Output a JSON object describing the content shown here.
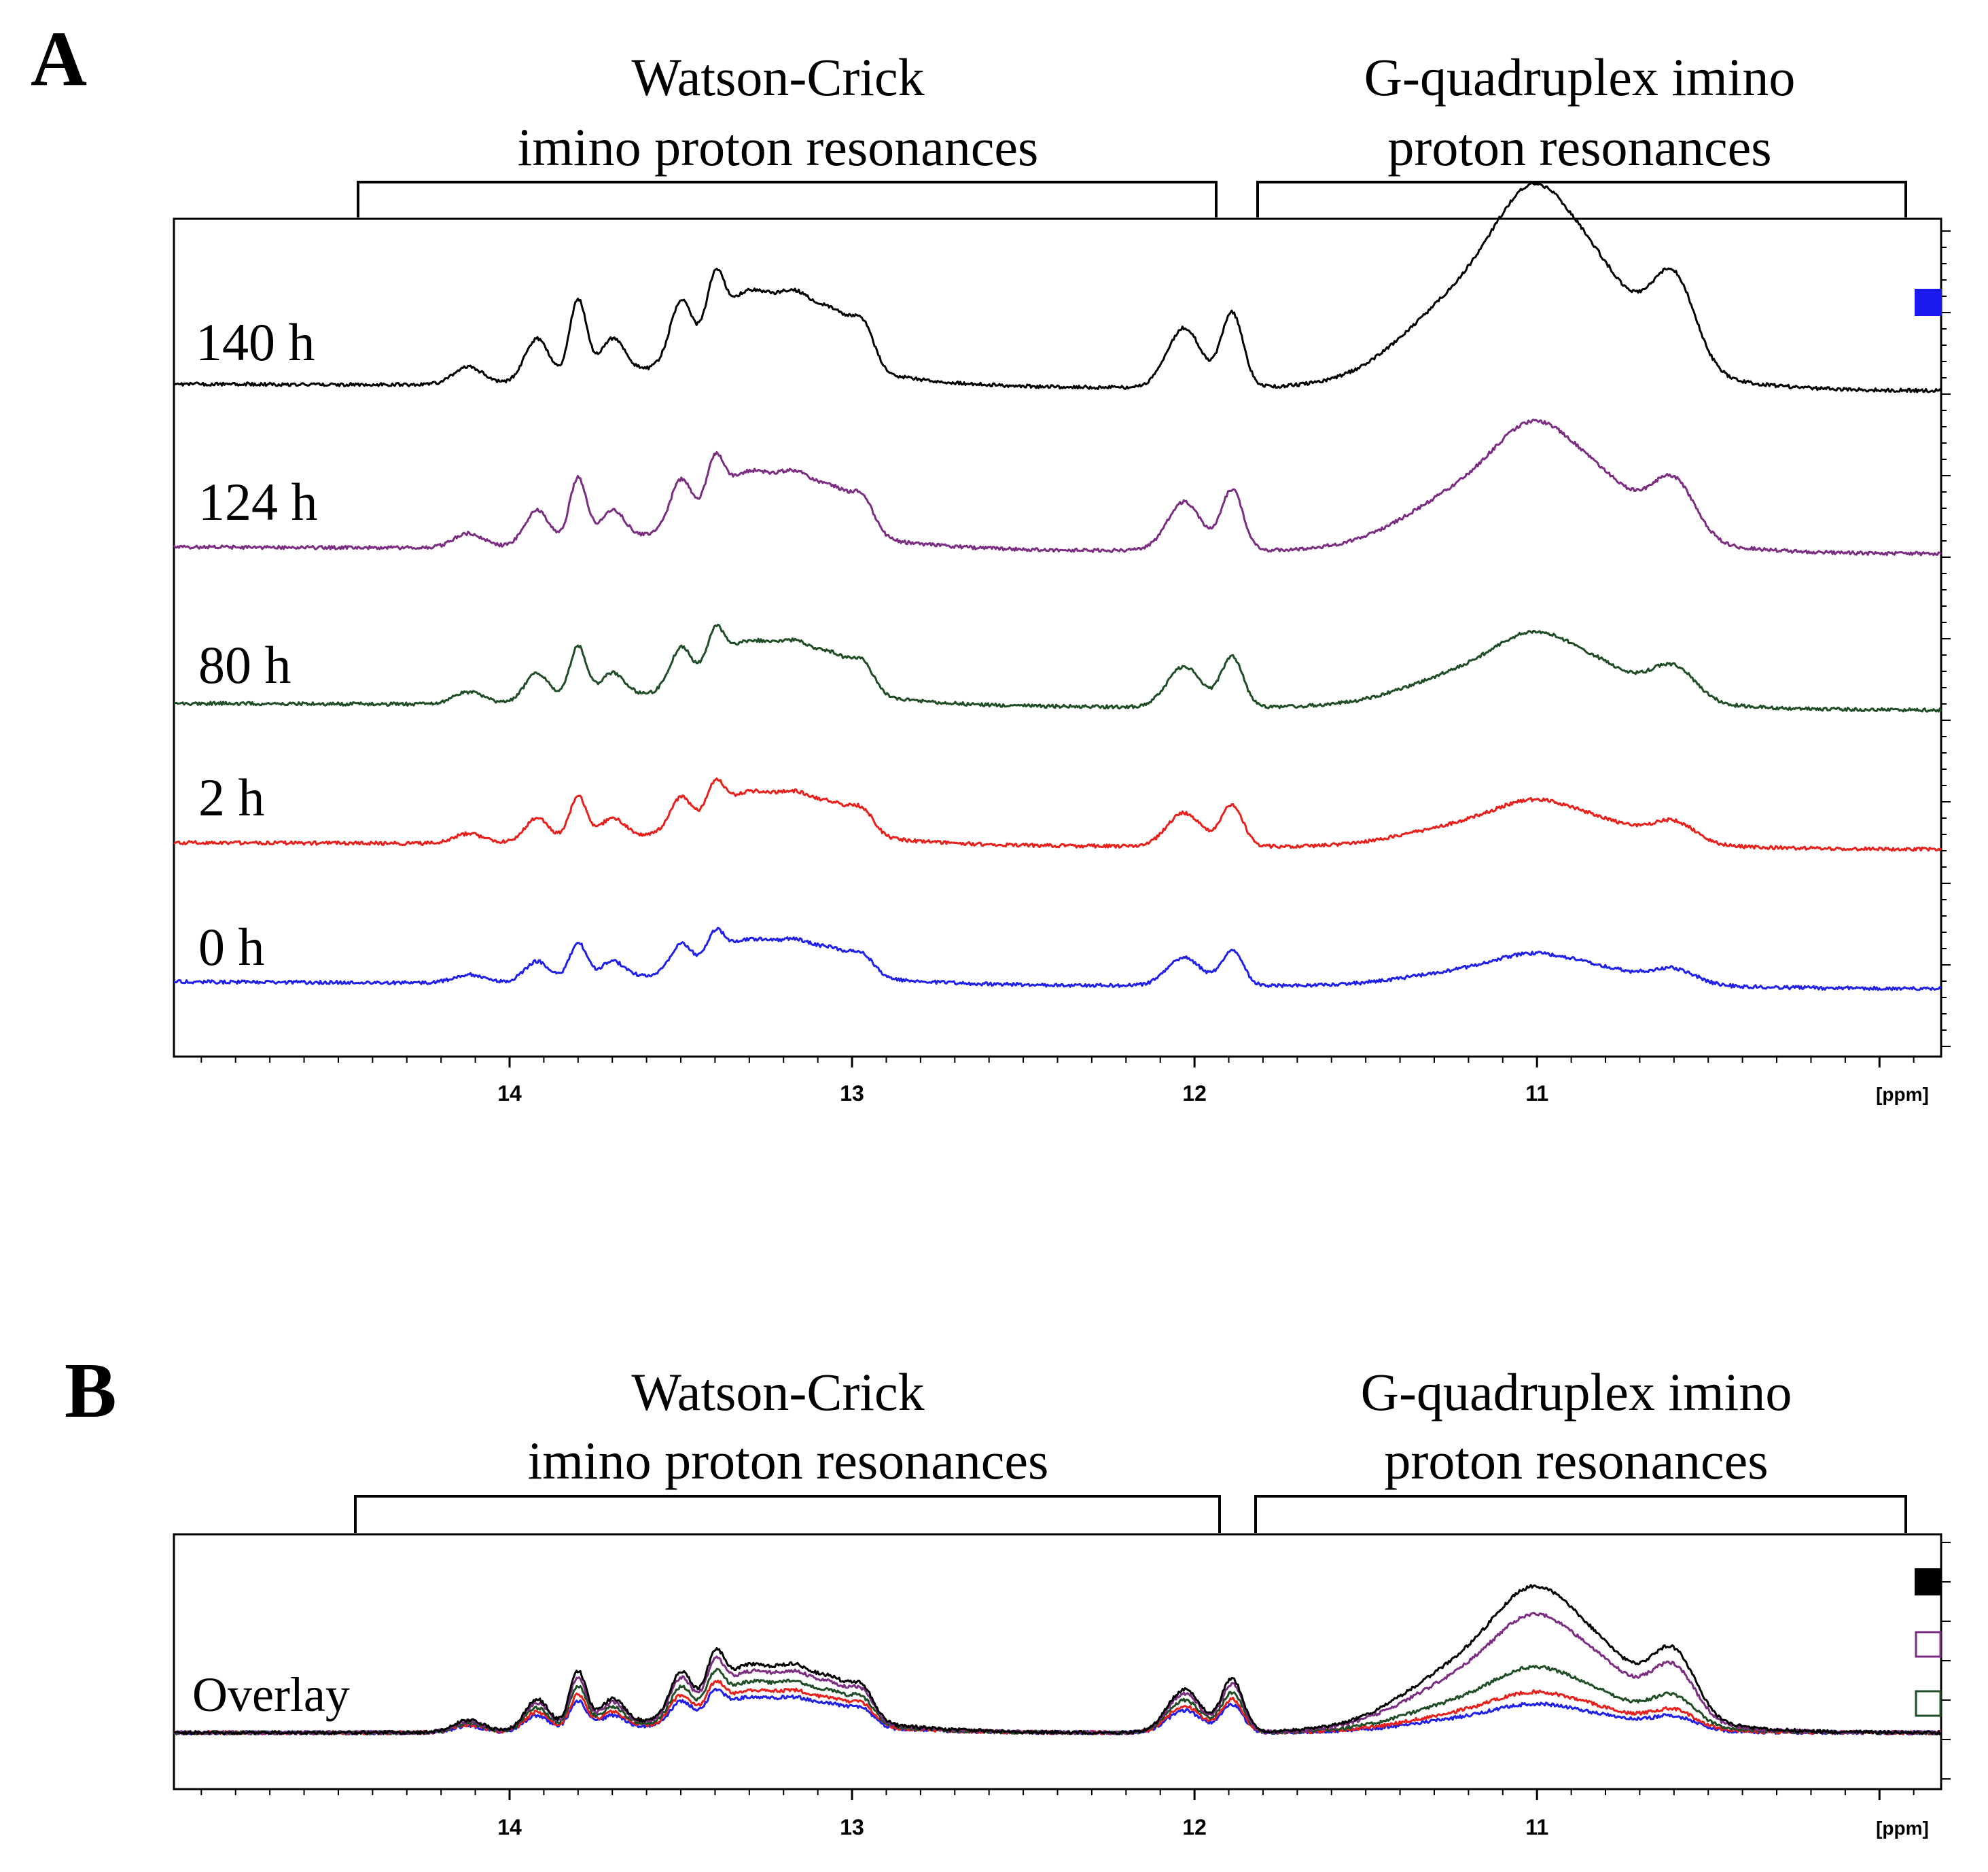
{
  "panels": [
    {
      "letter": "A",
      "brackets": [
        {
          "lines": [
            "Watson-Crick",
            "imino proton resonances"
          ],
          "from_ppm": 14.45,
          "to_ppm": 11.92
        },
        {
          "lines": [
            "G-quadruplex imino",
            "proton resonances"
          ],
          "from_ppm": 11.82,
          "to_ppm": 9.93
        }
      ]
    },
    {
      "letter": "B",
      "brackets": [
        {
          "lines": [
            "Watson-Crick",
            "imino proton resonances"
          ],
          "from_ppm": 14.45,
          "to_ppm": 11.92
        },
        {
          "lines": [
            "G-quadruplex imino",
            "proton resonances"
          ],
          "from_ppm": 11.82,
          "to_ppm": 9.93
        }
      ],
      "overlay_label": "Overlay"
    }
  ],
  "chart_data": [
    {
      "type": "line",
      "title": "A",
      "xlabel": "[ppm]",
      "xlim": [
        14.98,
        9.82
      ],
      "xticks": [
        "14",
        "13",
        "12",
        "11"
      ],
      "tick_values": [
        14,
        13,
        12,
        11
      ],
      "x_direction": "reversed",
      "series": [
        {
          "name": "140 h",
          "color": "#000000",
          "intensity_scale": 1.0
        },
        {
          "name": "124 h",
          "color": "#7b2d82",
          "intensity_scale": 0.82
        },
        {
          "name": "80 h",
          "color": "#1f4d26",
          "intensity_scale": 0.68
        },
        {
          "name": "2 h",
          "color": "#e8201c",
          "intensity_scale": 0.56
        },
        {
          "name": "0 h",
          "color": "#2020e8",
          "intensity_scale": 0.47
        }
      ],
      "peaks_ppm": [
        {
          "ppm": 14.12,
          "height": 0.12
        },
        {
          "ppm": 13.92,
          "height": 0.3
        },
        {
          "ppm": 13.8,
          "height": 0.55
        },
        {
          "ppm": 13.7,
          "height": 0.25
        },
        {
          "ppm": 13.5,
          "height": 0.42
        },
        {
          "ppm": 13.4,
          "height": 0.4
        },
        {
          "ppm": 13.3,
          "height": 0.48
        },
        {
          "ppm": 13.15,
          "height": 0.38
        },
        {
          "ppm": 13.05,
          "height": 0.3
        },
        {
          "ppm": 12.97,
          "height": 0.32
        },
        {
          "ppm": 12.03,
          "height": 0.42
        },
        {
          "ppm": 11.89,
          "height": 0.52
        },
        {
          "ppm": 11.2,
          "height": 0.5
        },
        {
          "ppm": 11.0,
          "height": 0.85
        },
        {
          "ppm": 10.8,
          "height": 0.45
        },
        {
          "ppm": 10.6,
          "height": 0.62
        }
      ],
      "legend": "blue square marker at top-right"
    },
    {
      "type": "line",
      "title": "B",
      "xlabel": "[ppm]",
      "xlim": [
        14.98,
        9.82
      ],
      "xticks": [
        "14",
        "13",
        "12",
        "11"
      ],
      "tick_values": [
        14,
        13,
        12,
        11
      ],
      "x_direction": "reversed",
      "series": [
        {
          "name": "140 h",
          "color": "#000000",
          "intensity_scale": 1.0
        },
        {
          "name": "124 h",
          "color": "#7b2d82",
          "intensity_scale": 0.9
        },
        {
          "name": "80 h",
          "color": "#1f4d26",
          "intensity_scale": 0.75
        },
        {
          "name": "2 h",
          "color": "#e8201c",
          "intensity_scale": 0.62
        },
        {
          "name": "0 h",
          "color": "#2020e8",
          "intensity_scale": 0.52
        }
      ],
      "legend": "stacked square markers at right: black filled, purple outline, green outline"
    }
  ],
  "colors": {
    "frame": "#000000",
    "legend_blue": "#1a1aee",
    "legend_purple": "#7b2d82",
    "legend_green": "#1f4d26"
  }
}
